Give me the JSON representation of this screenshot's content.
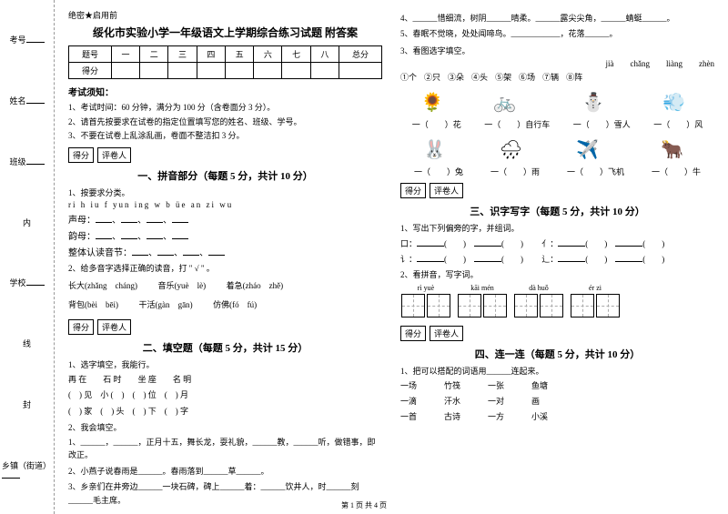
{
  "binding": {
    "labels": [
      "考号",
      "姓名",
      "班级",
      "学校",
      "乡镇（街道）"
    ],
    "dash_labels": [
      "题",
      "答",
      "准",
      "不",
      "内",
      "线",
      "封",
      "密"
    ]
  },
  "secret": "绝密★启用前",
  "title": "绥化市实验小学一年级语文上学期综合练习试题 附答案",
  "score_headers": [
    "题号",
    "一",
    "二",
    "三",
    "四",
    "五",
    "六",
    "七",
    "八",
    "总分"
  ],
  "score_row_label": "得分",
  "notice_title": "考试须知：",
  "notices": [
    "1、考试时间：60 分钟，满分为 100 分（含卷面分 3 分）。",
    "2、请首先按要求在试卷的指定位置填写您的姓名、班级、学号。",
    "3、不要在试卷上乱涂乱画，卷面不整洁扣 3 分。"
  ],
  "score_box": {
    "score": "得分",
    "grader": "评卷人"
  },
  "section1": {
    "title": "一、拼音部分（每题 5 分，共计 10 分）",
    "q1": "1、按要求分类。",
    "pinyin_chars": "ri  h  iu  f  yun  ing  w  b  üe  an  zi  wu",
    "lines": [
      "声母：",
      "韵母：",
      "整体认读音节："
    ],
    "q2": "2、给多音字选择正确的读音，打 \" √ \" 。",
    "items": [
      {
        "word": "长大",
        "p1": "zhǎng",
        "p2": "cháng"
      },
      {
        "word": "音乐",
        "p1": "yuè",
        "p2": "lè"
      },
      {
        "word": "着急",
        "p1": "zháo",
        "p2": "zhě"
      },
      {
        "word": "背包",
        "p1": "bèi",
        "p2": "bēi"
      },
      {
        "word": "干活",
        "p1": "gàn",
        "p2": "gān"
      },
      {
        "word": "仿佛",
        "p1": "fó",
        "p2": "fú"
      }
    ]
  },
  "section2": {
    "title": "二、填空题（每题 5 分，共计 15 分）",
    "q1": "1、选字填空，我能行。",
    "groups": [
      {
        "chars": "再  在",
        "items": [
          "(　) 见",
          "(　) 家"
        ]
      },
      {
        "chars": "石  时",
        "items": [
          "小 (　)",
          "(　) 头"
        ]
      },
      {
        "chars": "坐  座",
        "items": [
          "(　) 位",
          "(　) 下"
        ]
      },
      {
        "chars": "名  明",
        "items": [
          "(　) 月",
          "(　) 字"
        ]
      }
    ],
    "q2": "2、我会填空。",
    "fills": [
      "1、______，______，正月十五，舞长龙，耍礼貌，______教，______听，做错事，即改正。",
      "2、小燕子说春雨是______。春雨落到______草______。",
      "3、乡亲们在井旁边______一块石碑，碑上______着：______饮井人，时______刻______毛主席。"
    ]
  },
  "right": {
    "fills4_5": [
      "4、______惜细流，树阴______晴柔。______露尖尖角，______蜻蜓______。",
      "5、春眠不觉晓，处处闻啼鸟。____________，花落______。"
    ],
    "q3": "3、看图选字填空。",
    "measure_pinyin": [
      "jià",
      "chǎng",
      "liàng",
      "zhèn"
    ],
    "measure_opts": [
      "①个",
      "②只",
      "③朵",
      "④头",
      "⑤架",
      "⑥场",
      "⑦辆",
      "⑧阵"
    ],
    "img_row1": [
      {
        "icon": "🌻",
        "label": "一（　　）花"
      },
      {
        "icon": "🚲",
        "label": "一（　　）自行车"
      },
      {
        "icon": "⛄",
        "label": "一（　　）雪人"
      },
      {
        "icon": "💨",
        "label": "一（　　）风"
      }
    ],
    "img_row2": [
      {
        "icon": "🐰",
        "label": "一（　　）兔"
      },
      {
        "icon": "🌧",
        "label": "一（　　）雨"
      },
      {
        "icon": "✈️",
        "label": "一（　　）飞机"
      },
      {
        "icon": "🐂",
        "label": "一（　　）牛"
      }
    ]
  },
  "section3": {
    "title": "三、识字写字（每题 5 分，共计 10 分）",
    "q1": "1、写出下列偏旁的字，并组词。",
    "radicals": [
      "口：",
      "亻：",
      "讠：",
      "辶："
    ],
    "q2": "2、看拼音，写字词。",
    "pinyins": [
      "rì",
      "yuè",
      "kāi",
      "mén",
      "dà",
      "huǒ",
      "ér",
      "zi"
    ]
  },
  "section4": {
    "title": "四、连一连（每题 5 分，共计 10 分）",
    "q1": "1、把可以搭配的词语用______连起来。",
    "left": [
      "一场",
      "一滴",
      "一首"
    ],
    "mid": [
      "竹筏",
      "汗水",
      "古诗"
    ],
    "right_l": [
      "一张",
      "一对",
      "一方"
    ],
    "right_r": [
      "鱼塘",
      "画",
      "小溪"
    ]
  },
  "footer": "第 1 页 共 4 页"
}
